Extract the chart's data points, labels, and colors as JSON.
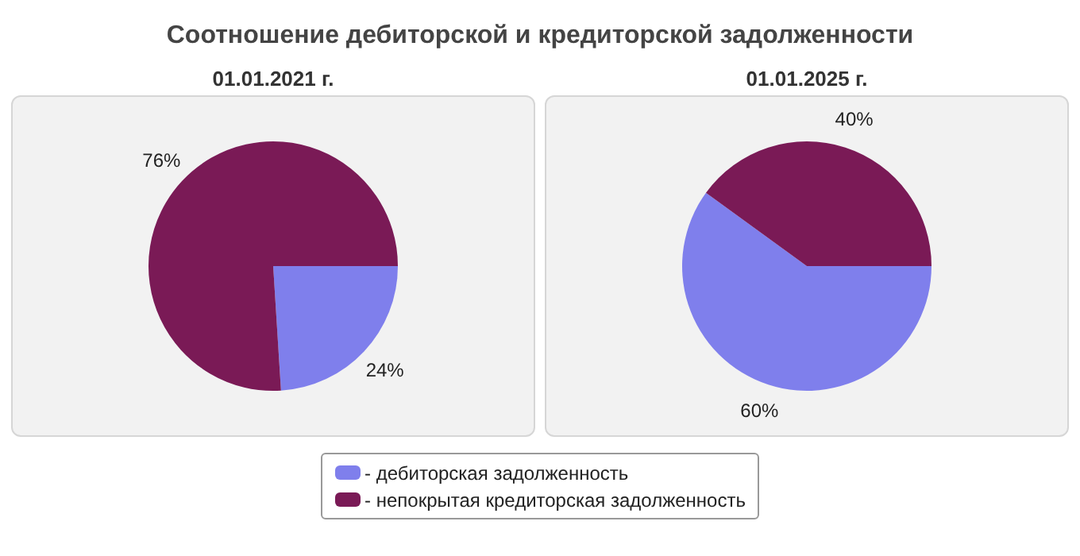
{
  "chart_data": [
    {
      "type": "pie",
      "title": "Соотношение дебиторской и кредиторской задолженности",
      "subtitle": "01.01.2021 г.",
      "categories": [
        "- дебиторская задолженность",
        "- непокрытая кредиторская задолженность"
      ],
      "values": [
        24,
        76
      ],
      "colors": [
        "#7f7fec",
        "#7a1a56"
      ],
      "value_labels": [
        "24%",
        "76%"
      ],
      "legend": "bottom"
    },
    {
      "type": "pie",
      "subtitle": "01.01.2025 г.",
      "categories": [
        null,
        null
      ],
      "values": [
        60,
        40
      ],
      "colors": [
        "#7f7fec",
        "#7a1a56"
      ],
      "value_labels": [
        "60%",
        "40%"
      ]
    }
  ]
}
